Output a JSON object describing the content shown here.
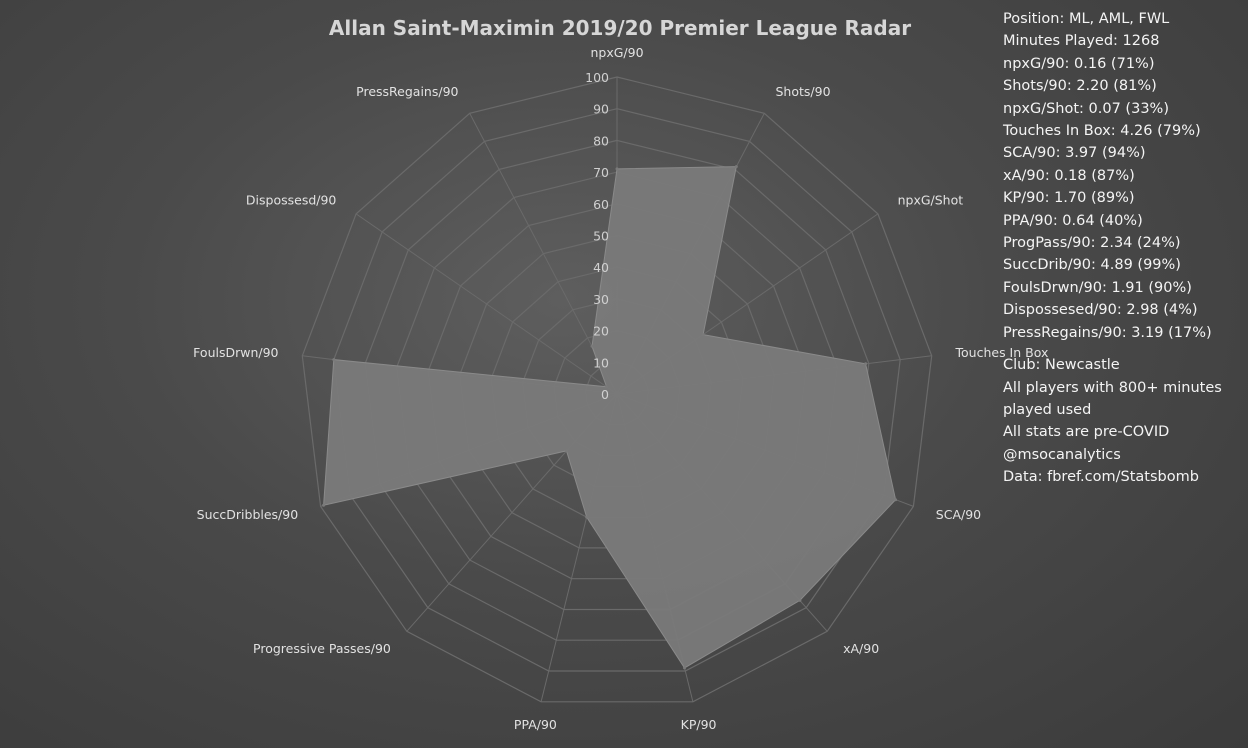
{
  "chart_data": {
    "type": "radar",
    "title": "Allan Saint-Maximin 2019/20 Premier League Radar",
    "categories": [
      "npxG/90",
      "Shots/90",
      "npxG/Shot",
      "Touches In Box",
      "SCA/90",
      "xA/90",
      "KP/90",
      "PPA/90",
      "Progressive Passes/90",
      "SuccDribbles/90",
      "FoulsDrwn/90",
      "Dispossesd/90",
      "PressRegains/90"
    ],
    "series": [
      {
        "values": [
          71,
          81,
          33,
          79,
          94,
          87,
          89,
          40,
          24,
          99,
          90,
          4,
          17
        ]
      }
    ],
    "rlim": [
      0,
      100
    ],
    "ticks": [
      "0",
      "10",
      "20",
      "30",
      "40",
      "50",
      "60",
      "70",
      "80",
      "90",
      "100"
    ],
    "colors": {
      "fill": "#7a7a7a",
      "grid": "#6a6a6a",
      "background": "#4a4a4a"
    }
  },
  "info": {
    "stats": [
      "Position: ML, AML, FWL",
      "Minutes Played: 1268",
      "npxG/90: 0.16 (71%)",
      "Shots/90: 2.20 (81%)",
      "npxG/Shot: 0.07 (33%)",
      "Touches In Box: 4.26 (79%)",
      "SCA/90: 3.97 (94%)",
      "xA/90: 0.18 (87%)",
      "KP/90: 1.70 (89%)",
      "PPA/90: 0.64 (40%)",
      "ProgPass/90: 2.34 (24%)",
      "SuccDrib/90: 4.89 (99%)",
      "FoulsDrwn/90: 1.91 (90%)",
      "Dispossesed/90: 2.98 (4%)",
      "PressRegains/90: 3.19 (17%)"
    ],
    "notes": [
      "Club: Newcastle",
      "All players with 800+ minutes played used",
      "All stats are pre-COVID",
      "@msocanalytics",
      "Data: fbref.com/Statsbomb"
    ]
  }
}
